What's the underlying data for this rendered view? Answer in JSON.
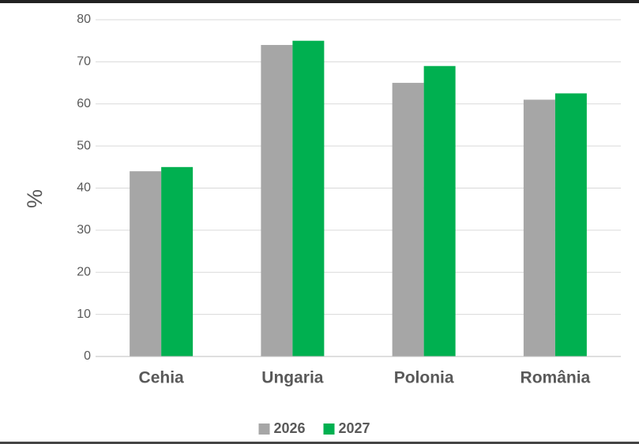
{
  "chart_data": {
    "type": "bar",
    "y_label": "%",
    "categories": [
      "Cehia",
      "Ungaria",
      "Polonia",
      "România"
    ],
    "series": [
      {
        "name": "2026",
        "color": "#a6a6a6",
        "values": [
          44,
          74,
          65,
          61
        ]
      },
      {
        "name": "2027",
        "color": "#00b050",
        "values": [
          45,
          75,
          69,
          62.5
        ]
      }
    ],
    "ylim": [
      0,
      80
    ],
    "yticks": [
      0,
      10,
      20,
      30,
      40,
      50,
      60,
      70,
      80
    ],
    "grid": true,
    "legend": "bottom"
  }
}
